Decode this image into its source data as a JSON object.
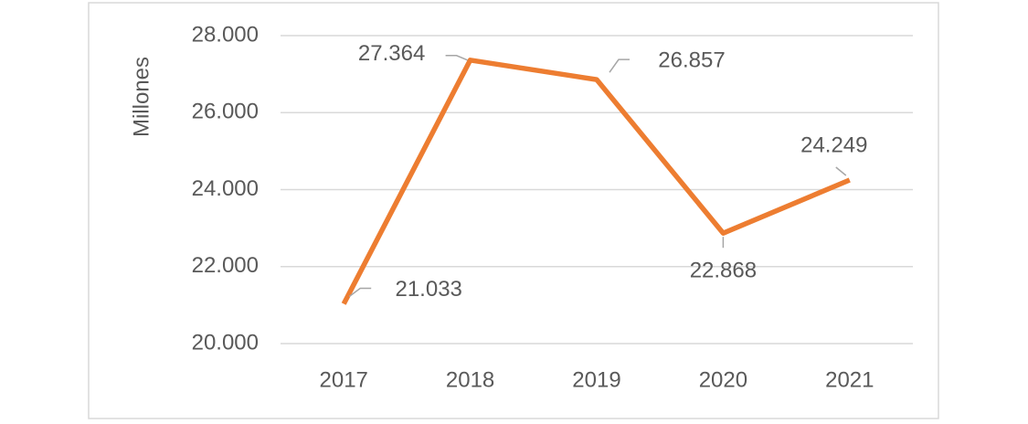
{
  "chart_data": {
    "type": "line",
    "y_label": "Millones",
    "categories": [
      "2017",
      "2018",
      "2019",
      "2020",
      "2021"
    ],
    "values": [
      21033,
      27364,
      26857,
      22868,
      24249
    ],
    "value_labels": [
      "21.033",
      "27.364",
      "26.857",
      "22.868",
      "24.249"
    ],
    "color": "#ed7d31",
    "ylim": [
      20000,
      28000
    ],
    "yticks": [
      {
        "value": 20000,
        "label": "20.000"
      },
      {
        "value": 22000,
        "label": "22.000"
      },
      {
        "value": 24000,
        "label": "24.000"
      },
      {
        "value": 26000,
        "label": "26.000"
      },
      {
        "value": 28000,
        "label": "28.000"
      }
    ],
    "grid": true
  }
}
